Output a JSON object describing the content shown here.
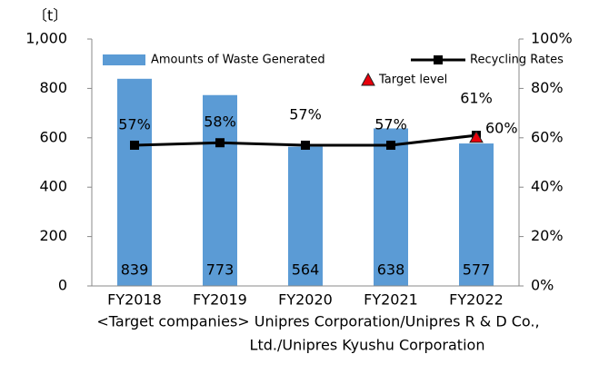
{
  "chart_data": {
    "type": "bar",
    "unit_label": "〔t〕",
    "categories": [
      "FY2018",
      "FY2019",
      "FY2020",
      "FY2021",
      "FY2022"
    ],
    "series": [
      {
        "name": "Amounts of Waste Generated",
        "type": "bar",
        "color": "#5b9bd5",
        "values": [
          839,
          773,
          564,
          638,
          577
        ]
      },
      {
        "name": "Recycling Rates",
        "type": "line",
        "axis": "y2",
        "color": "#000000",
        "values": [
          57,
          58,
          57,
          57,
          61
        ],
        "value_labels": [
          "57%",
          "58%",
          "57%",
          "57%",
          "61%"
        ]
      }
    ],
    "target": {
      "name": "Target level",
      "value": 60,
      "label": "60%",
      "color": "#e8000b"
    },
    "ylim": [
      0,
      1000
    ],
    "yticks": [
      0,
      200,
      400,
      600,
      800,
      {
        "value": 1000,
        "label": "1,000"
      }
    ],
    "y2lim": [
      0,
      100
    ],
    "y2ticks": [
      {
        "value": 0,
        "label": "0%"
      },
      {
        "value": 20,
        "label": "20%"
      },
      {
        "value": 40,
        "label": "40%"
      },
      {
        "value": 60,
        "label": "60%"
      },
      {
        "value": 80,
        "label": "80%"
      },
      {
        "value": 100,
        "label": "100%"
      }
    ],
    "grid": false,
    "notes": [
      "<Target companies> Unipres Corporation/Unipres R & D Co.,",
      "Ltd./Unipres Kyushu Corporation"
    ]
  }
}
